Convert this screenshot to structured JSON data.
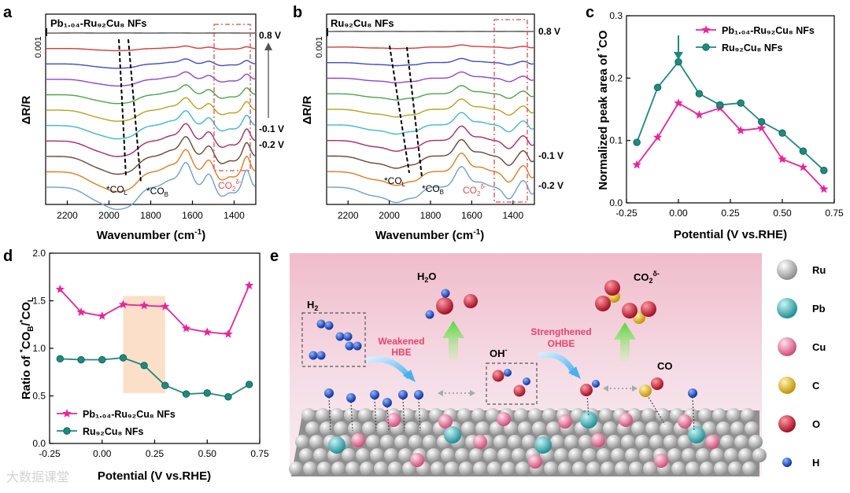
{
  "panels": {
    "a": {
      "letter": "a",
      "title": "Pb₁.₀₄-Ru₉₂Cu₈ NFs"
    },
    "b": {
      "letter": "b",
      "title": "Ru₉₂Cu₈ NFs"
    },
    "c": {
      "letter": "c"
    },
    "d": {
      "letter": "d"
    },
    "e": {
      "letter": "e"
    }
  },
  "chart_data": [
    {
      "id": "a",
      "type": "line",
      "title": "Pb₁.₀₄-Ru₉₂Cu₈ NFs",
      "xlabel": "Wavenumber (cm⁻¹)",
      "ylabel": "ΔR/R",
      "xlim": [
        2300,
        1300
      ],
      "x_ticks": [
        2200,
        2000,
        1800,
        1600,
        1400
      ],
      "scale_label": "0.001",
      "potential_labels": [
        "0.8 V",
        "-0.1 V",
        "-0.2 V"
      ],
      "annotations": [
        "*CO_L",
        "*CO_B",
        "CO₂δ⁻"
      ],
      "series_count": 11,
      "series_colors": [
        "#555555",
        "#d63a3a",
        "#3f49c7",
        "#8e44d4",
        "#4aa64a",
        "#b9a21a",
        "#3cb8d6",
        "#b0285e",
        "#6b4634",
        "#e87a1e",
        "#6f9fcf"
      ]
    },
    {
      "id": "b",
      "type": "line",
      "title": "Ru₉₂Cu₈ NFs",
      "xlabel": "Wavenumber (cm⁻¹)",
      "ylabel": "ΔR/R",
      "xlim": [
        2300,
        1300
      ],
      "x_ticks": [
        2200,
        2000,
        1800,
        1600,
        1400
      ],
      "scale_label": "0.001",
      "potential_labels": [
        "0.8 V",
        "-0.1 V",
        "-0.2 V"
      ],
      "annotations": [
        "*CO_L",
        "*CO_B",
        "CO₂δ⁻"
      ],
      "series_count": 11
    },
    {
      "id": "c",
      "type": "line",
      "xlabel": "Potential (V vs.RHE)",
      "ylabel": "Normalized peak area of *CO",
      "xlim": [
        -0.25,
        0.75
      ],
      "ylim": [
        0,
        0.3
      ],
      "x_ticks": [
        "-0.25",
        "0.00",
        "0.25",
        "0.50",
        "0.75"
      ],
      "y_ticks": [
        "0.0",
        "0.1",
        "0.2",
        "0.3"
      ],
      "x": [
        -0.2,
        -0.1,
        0.0,
        0.1,
        0.2,
        0.3,
        0.4,
        0.5,
        0.6,
        0.7
      ],
      "series": [
        {
          "name": "Pb₁.₀₄-Ru₉₂Cu₈ NFs",
          "color": "#e8259a",
          "marker": "star",
          "values": [
            0.061,
            0.105,
            0.16,
            0.141,
            0.152,
            0.116,
            0.12,
            0.07,
            0.057,
            0.022
          ]
        },
        {
          "name": "Ru₉₂Cu₈ NFs",
          "color": "#1e8a7d",
          "marker": "circle",
          "values": [
            0.097,
            0.185,
            0.226,
            0.175,
            0.157,
            0.16,
            0.13,
            0.112,
            0.083,
            0.052
          ]
        }
      ],
      "legend": "top-right"
    },
    {
      "id": "d",
      "type": "line",
      "xlabel": "Potential (V vs.RHE)",
      "ylabel": "Ratio of *CO_B/*CO_L",
      "xlim": [
        -0.25,
        0.75
      ],
      "ylim": [
        0.0,
        2.0
      ],
      "x_ticks": [
        "-0.25",
        "0.00",
        "0.25",
        "0.50",
        "0.75"
      ],
      "y_ticks": [
        "0.0",
        "0.5",
        "1.0",
        "1.5",
        "2.0"
      ],
      "x": [
        -0.2,
        -0.1,
        0.0,
        0.1,
        0.2,
        0.3,
        0.4,
        0.5,
        0.6,
        0.7
      ],
      "shaded_x_range": [
        0.1,
        0.3
      ],
      "series": [
        {
          "name": "Pb₁.₀₄-Ru₉₂Cu₈ NFs",
          "color": "#e8259a",
          "marker": "star",
          "values": [
            1.62,
            1.38,
            1.34,
            1.46,
            1.45,
            1.44,
            1.21,
            1.17,
            1.15,
            1.66
          ]
        },
        {
          "name": "Ru₉₂Cu₈ NFs",
          "color": "#1e8a7d",
          "marker": "circle",
          "values": [
            0.89,
            0.88,
            0.88,
            0.9,
            0.82,
            0.61,
            0.52,
            0.53,
            0.49,
            0.62
          ]
        }
      ],
      "legend": "bottom-left"
    }
  ],
  "schematic": {
    "labels": {
      "h2": "H₂",
      "h2o": "H₂O",
      "oh": "OH⁻",
      "co2": "CO₂δ⁻",
      "co": "CO",
      "weakened_line1": "Weakened",
      "weakened_line2": "HBE",
      "strength_line1": "Strengthened",
      "strength_line2": "OHBE"
    },
    "legend": [
      {
        "label": "Ru",
        "color": "#e4e4e4"
      },
      {
        "label": "Pb",
        "color": "#4fc3c8"
      },
      {
        "label": "Cu",
        "color": "#ef8fb0"
      },
      {
        "label": "C",
        "color": "#f2c21a"
      },
      {
        "label": "O",
        "color": "#e0203c"
      },
      {
        "label": "H",
        "color": "#1f55c8"
      }
    ]
  },
  "watermark": "大数据课堂"
}
